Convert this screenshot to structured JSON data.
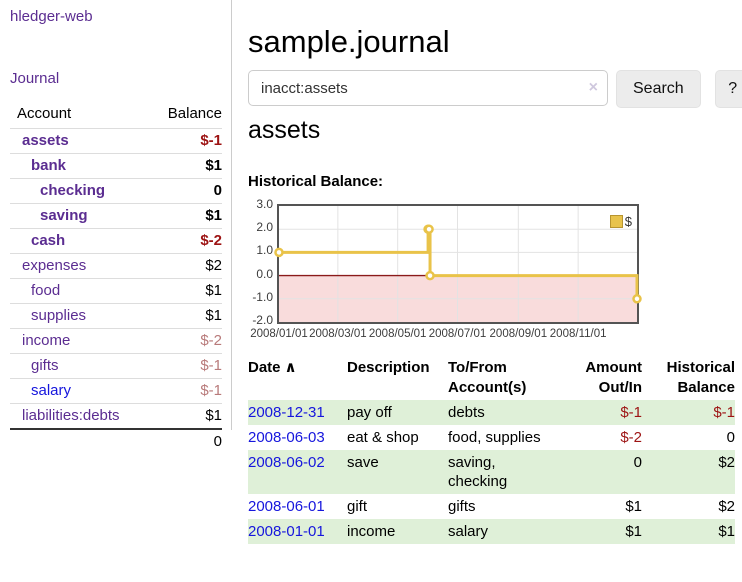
{
  "app": {
    "title": "hledger-web",
    "nav_journal": "Journal"
  },
  "sidebar": {
    "col_account": "Account",
    "col_balance": "Balance",
    "accounts": [
      {
        "name": "assets",
        "depth": 1,
        "emph": true,
        "balance": "$-1",
        "neg": "strong"
      },
      {
        "name": "bank",
        "depth": 2,
        "emph": true,
        "balance": "$1"
      },
      {
        "name": "checking",
        "depth": 3,
        "emph": true,
        "balance": "0"
      },
      {
        "name": "saving",
        "depth": 3,
        "emph": true,
        "balance": "$1"
      },
      {
        "name": "cash",
        "depth": 2,
        "emph": true,
        "balance": "$-2",
        "neg": "strong"
      },
      {
        "name": "expenses",
        "depth": 1,
        "balance": "$2"
      },
      {
        "name": "food",
        "depth": 2,
        "balance": "$1"
      },
      {
        "name": "supplies",
        "depth": 2,
        "balance": "$1"
      },
      {
        "name": "income",
        "depth": 1,
        "balance": "$-2",
        "neg": "soft"
      },
      {
        "name": "gifts",
        "depth": 2,
        "balance": "$-1",
        "neg": "soft"
      },
      {
        "name": "salary",
        "depth": 2,
        "balance": "$-1",
        "neg": "soft",
        "unvisited": true
      },
      {
        "name": "liabilities:debts",
        "depth": 1,
        "balance": "$1"
      }
    ],
    "total": "0"
  },
  "header": {
    "title": "sample.journal"
  },
  "search": {
    "value": "inacct:assets",
    "clear_icon": "×",
    "button": "Search",
    "help_button": "?"
  },
  "account_page": {
    "heading": "assets",
    "chart_label": "Historical Balance:"
  },
  "chart_data": {
    "type": "line",
    "step": true,
    "xrange": [
      "2008-01-01",
      "2008-12-31"
    ],
    "ylim": [
      -2,
      3
    ],
    "yticks": [
      "3.0",
      "2.0",
      "1.0",
      "0.0",
      "-1.0",
      "-2.0"
    ],
    "ytick_values": [
      3,
      2,
      1,
      0,
      -1,
      -2
    ],
    "xticks": [
      "2008/01/01",
      "2008/03/01",
      "2008/05/01",
      "2008/07/01",
      "2008/09/01",
      "2008/11/01"
    ],
    "xtick_dates": [
      "2008-01-01",
      "2008-03-01",
      "2008-05-01",
      "2008-07-01",
      "2008-09-01",
      "2008-11-01"
    ],
    "series": [
      {
        "name": "$",
        "color": "#e9c349",
        "points": [
          [
            "2008-01-01",
            1
          ],
          [
            "2008-06-01",
            2
          ],
          [
            "2008-06-02",
            2
          ],
          [
            "2008-06-03",
            0
          ],
          [
            "2008-12-31",
            -1
          ]
        ]
      }
    ],
    "legend_position": "top-right",
    "grid": true,
    "negative_fill": "#f9dcdc",
    "zero_line_color": "#8b1a1a"
  },
  "register": {
    "columns": [
      {
        "label": "Date",
        "align": "left",
        "sorted": "asc"
      },
      {
        "label": "Description",
        "align": "left"
      },
      {
        "label": "To/From Account(s)",
        "align": "left"
      },
      {
        "label": "Amount Out/In",
        "align": "right"
      },
      {
        "label": "Historical Balance",
        "align": "right"
      }
    ],
    "sort_icon": "∧",
    "rows": [
      {
        "date": "2008-12-31",
        "description": "pay off",
        "accounts": "debts",
        "amount": "$-1",
        "balance": "$-1"
      },
      {
        "date": "2008-06-03",
        "description": "eat & shop",
        "accounts": "food, supplies",
        "amount": "$-2",
        "balance": "0"
      },
      {
        "date": "2008-06-02",
        "description": "save",
        "accounts": "saving, checking",
        "amount": "0",
        "balance": "$2"
      },
      {
        "date": "2008-06-01",
        "description": "gift",
        "accounts": "gifts",
        "amount": "$1",
        "balance": "$2"
      },
      {
        "date": "2008-01-01",
        "description": "income",
        "accounts": "salary",
        "amount": "$1",
        "balance": "$1"
      }
    ]
  }
}
